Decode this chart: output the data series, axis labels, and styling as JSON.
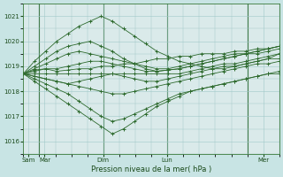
{
  "title": "Pression niveau de la mer( hPa )",
  "bg_color": "#c8e4e4",
  "plot_bg_color": "#daeaea",
  "line_color": "#2d6a2d",
  "grid_color": "#a0c8c8",
  "yticks": [
    1016,
    1017,
    1018,
    1019,
    1020,
    1021
  ],
  "ylim": [
    1015.5,
    1021.5
  ],
  "xlim": [
    0,
    96
  ],
  "xtick_positions": [
    2,
    8,
    30,
    54,
    90
  ],
  "xtick_labels": [
    "Sam",
    "Mar",
    "Dim",
    "Lun",
    "Mer"
  ],
  "vline_positions": [
    6,
    30,
    54,
    84
  ],
  "series": [
    [
      1018.7,
      1018.8,
      1018.9,
      1018.8,
      1018.85,
      1018.9,
      1018.9,
      1019.0,
      1019.0,
      1019.1,
      1019.1,
      1019.2,
      1019.3,
      1019.3,
      1019.4,
      1019.4,
      1019.5,
      1019.5,
      1019.5,
      1019.6,
      1019.6,
      1019.7,
      1019.7,
      1019.8
    ],
    [
      1018.7,
      1019.0,
      1019.3,
      1019.6,
      1019.8,
      1019.9,
      1020.0,
      1019.8,
      1019.6,
      1019.3,
      1019.1,
      1018.9,
      1018.8,
      1018.85,
      1018.9,
      1019.0,
      1019.1,
      1019.2,
      1019.3,
      1019.4,
      1019.5,
      1019.5,
      1019.6,
      1019.7
    ],
    [
      1018.7,
      1019.2,
      1019.6,
      1020.0,
      1020.3,
      1020.6,
      1020.8,
      1021.0,
      1020.8,
      1020.5,
      1020.2,
      1019.9,
      1019.6,
      1019.4,
      1019.2,
      1019.1,
      1019.0,
      1018.9,
      1018.9,
      1019.0,
      1019.1,
      1019.2,
      1019.3,
      1019.5
    ],
    [
      1018.7,
      1018.9,
      1019.1,
      1019.3,
      1019.5,
      1019.6,
      1019.5,
      1019.4,
      1019.3,
      1019.2,
      1019.1,
      1019.0,
      1018.9,
      1018.9,
      1019.0,
      1019.1,
      1019.2,
      1019.3,
      1019.4,
      1019.5,
      1019.5,
      1019.6,
      1019.7,
      1019.8
    ],
    [
      1018.7,
      1018.6,
      1018.5,
      1018.4,
      1018.3,
      1018.2,
      1018.1,
      1018.0,
      1017.9,
      1017.9,
      1018.0,
      1018.1,
      1018.2,
      1018.3,
      1018.4,
      1018.5,
      1018.6,
      1018.7,
      1018.8,
      1018.9,
      1019.0,
      1019.1,
      1019.1,
      1019.2
    ],
    [
      1018.7,
      1018.5,
      1018.3,
      1018.1,
      1017.9,
      1017.6,
      1017.3,
      1017.0,
      1016.8,
      1016.9,
      1017.1,
      1017.3,
      1017.5,
      1017.7,
      1017.9,
      1018.0,
      1018.1,
      1018.2,
      1018.3,
      1018.4,
      1018.5,
      1018.6,
      1018.7,
      1018.8
    ],
    [
      1018.7,
      1018.4,
      1018.1,
      1017.8,
      1017.5,
      1017.2,
      1016.9,
      1016.6,
      1016.3,
      1016.5,
      1016.8,
      1017.1,
      1017.4,
      1017.6,
      1017.8,
      1018.0,
      1018.1,
      1018.2,
      1018.3,
      1018.4,
      1018.5,
      1018.6,
      1018.7,
      1018.7
    ],
    [
      1018.7,
      1018.85,
      1018.9,
      1018.9,
      1019.0,
      1019.1,
      1019.2,
      1019.2,
      1019.1,
      1019.0,
      1018.9,
      1018.8,
      1018.8,
      1018.85,
      1018.9,
      1019.0,
      1019.1,
      1019.2,
      1019.3,
      1019.4,
      1019.5,
      1019.6,
      1019.7,
      1019.8
    ],
    [
      1018.7,
      1018.6,
      1018.5,
      1018.4,
      1018.3,
      1018.4,
      1018.5,
      1018.6,
      1018.7,
      1018.6,
      1018.5,
      1018.4,
      1018.4,
      1018.5,
      1018.6,
      1018.7,
      1018.8,
      1018.9,
      1019.0,
      1019.0,
      1019.1,
      1019.2,
      1019.3,
      1019.3
    ],
    [
      1018.7,
      1018.7,
      1018.7,
      1018.7,
      1018.7,
      1018.7,
      1018.7,
      1018.7,
      1018.7,
      1018.7,
      1018.7,
      1018.7,
      1018.7,
      1018.7,
      1018.7,
      1018.8,
      1018.9,
      1019.0,
      1019.1,
      1019.1,
      1019.2,
      1019.3,
      1019.4,
      1019.5
    ]
  ]
}
